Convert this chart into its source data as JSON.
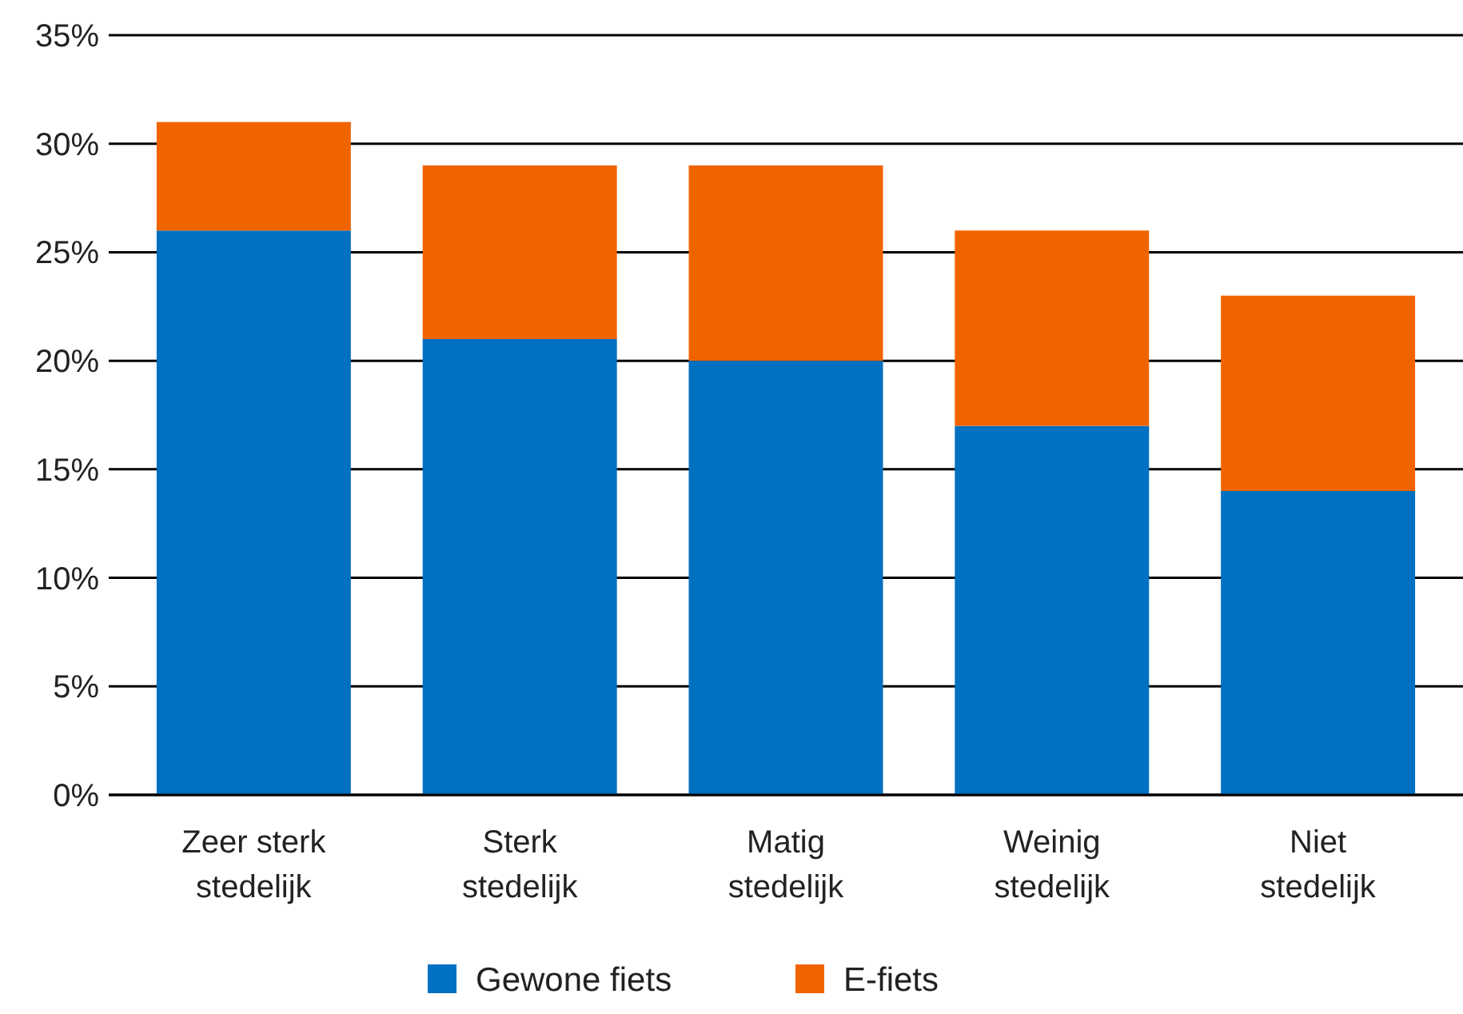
{
  "chart_data": {
    "type": "bar",
    "stacked": true,
    "categories": [
      "Zeer sterk stedelijk",
      "Sterk stedelijk",
      "Matig stedelijk",
      "Weinig stedelijk",
      "Niet stedelijk"
    ],
    "series": [
      {
        "name": "Gewone fiets",
        "color": "#0070c0",
        "values": [
          26,
          21,
          20,
          17,
          14
        ]
      },
      {
        "name": "E-fiets",
        "color": "#f06400",
        "values": [
          5,
          8,
          9,
          9,
          9
        ]
      }
    ],
    "ylim": [
      0,
      35
    ],
    "yticks": [
      {
        "value": 0,
        "label": "0%"
      },
      {
        "value": 5,
        "label": "5%"
      },
      {
        "value": 10,
        "label": "10%"
      },
      {
        "value": 15,
        "label": "15%"
      },
      {
        "value": 20,
        "label": "20%"
      },
      {
        "value": 25,
        "label": "25%"
      },
      {
        "value": 30,
        "label": "30%"
      },
      {
        "value": 35,
        "label": "35%"
      }
    ],
    "grid": "y",
    "legend": "bottom"
  }
}
